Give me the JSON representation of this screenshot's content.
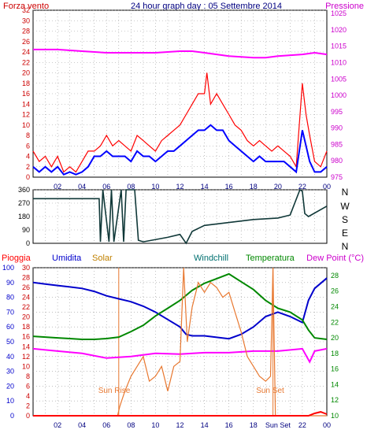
{
  "header": {
    "left_label": "Forza vento",
    "title": "24 hour graph day : 05 Settembre 2014",
    "right_label": "Pressione"
  },
  "direction_labels": [
    "N",
    "W",
    "S",
    "E",
    "N"
  ],
  "bottom_legend": {
    "pioggia": "Pioggia",
    "umidita": "Umidita",
    "solar": "Solar",
    "windchill": "Windchill",
    "temperatura": "Temperatura",
    "dewpoint": "Dew Point (°C)"
  },
  "sun_labels": {
    "rise": "Sun Rise",
    "set": "Sun Set"
  },
  "colors": {
    "wind_gust": "#ff0000",
    "wind_avg": "#0000ff",
    "pressure": "#ff00ff",
    "direction": "#103838",
    "humidity": "#0000cc",
    "solar": "#e87830",
    "temperature": "#008800",
    "dewpoint": "#ff00ff",
    "rain": "#ff0000",
    "windchill": "#006666",
    "left_axis": "#cc0000",
    "right_axis": "#cc00cc"
  },
  "chart_data": [
    {
      "type": "line",
      "name": "wind-pressure",
      "x_ticks": [
        "02",
        "04",
        "06",
        "08",
        "10",
        "12",
        "14",
        "16",
        "18",
        "20",
        "22",
        "00"
      ],
      "x_range_hours": [
        0,
        24
      ],
      "left_axis": {
        "ticks": [
          0,
          2,
          4,
          6,
          8,
          10,
          12,
          14,
          16,
          18,
          20,
          22,
          24,
          26,
          28,
          30,
          32
        ],
        "ylim": [
          0,
          32
        ]
      },
      "right_axis": {
        "ticks": [
          975,
          980,
          985,
          990,
          995,
          1000,
          1005,
          1010,
          1015,
          1020,
          1025
        ],
        "ylim": [
          975,
          1026
        ]
      },
      "series": [
        {
          "name": "Forza vento",
          "axis": "left",
          "x": [
            0,
            0.5,
            1,
            1.5,
            2,
            2.5,
            3,
            3.5,
            4,
            4.5,
            5,
            5.5,
            6,
            6.5,
            7,
            7.5,
            8,
            8.5,
            9,
            9.5,
            10,
            10.5,
            11,
            11.5,
            12,
            12.5,
            13,
            13.5,
            14,
            14.2,
            14.5,
            15,
            15.5,
            16,
            16.5,
            17,
            17.5,
            18,
            18.5,
            19,
            19.5,
            20,
            20.5,
            21,
            21.5,
            22,
            22.3,
            22.6,
            23,
            23.5,
            24
          ],
          "y": [
            5,
            3,
            4,
            2,
            4,
            1,
            2,
            1,
            3,
            5,
            5,
            6,
            8,
            6,
            7,
            6,
            5,
            8,
            7,
            6,
            5,
            7,
            8,
            9,
            10,
            12,
            14,
            16,
            16,
            20,
            14,
            16,
            14,
            12,
            10,
            9,
            7,
            6,
            7,
            6,
            5,
            6,
            5,
            4,
            2,
            18,
            12,
            8,
            3,
            2,
            5
          ]
        },
        {
          "name": "Vento medio",
          "axis": "left",
          "x": [
            0,
            0.5,
            1,
            1.5,
            2,
            2.5,
            3,
            3.5,
            4,
            4.5,
            5,
            5.5,
            6,
            6.5,
            7,
            7.5,
            8,
            8.5,
            9,
            9.5,
            10,
            10.5,
            11,
            11.5,
            12,
            12.5,
            13,
            13.5,
            14,
            14.5,
            15,
            15.5,
            16,
            16.5,
            17,
            17.5,
            18,
            18.5,
            19,
            19.5,
            20,
            20.5,
            21,
            21.5,
            22,
            22.3,
            22.6,
            23,
            23.5,
            24
          ],
          "y": [
            2,
            1,
            2,
            1,
            2,
            0.5,
            1,
            0.5,
            1,
            2,
            4,
            4,
            5,
            4,
            4,
            4,
            3,
            5,
            4,
            4,
            3,
            4,
            5,
            5,
            6,
            7,
            8,
            9,
            9,
            10,
            9,
            9,
            7,
            6,
            5,
            4,
            3,
            4,
            3,
            3,
            3,
            3,
            2,
            1,
            9,
            6,
            3,
            1,
            1,
            2
          ]
        },
        {
          "name": "Pressione",
          "axis": "right",
          "x": [
            0,
            2,
            4,
            6,
            8,
            10,
            12,
            13,
            14,
            15,
            16,
            18,
            19,
            20,
            22,
            23,
            24
          ],
          "y": [
            1014,
            1014,
            1013.5,
            1013,
            1013,
            1013,
            1013.5,
            1013.5,
            1013,
            1012.5,
            1012,
            1011.5,
            1011.5,
            1012,
            1012.5,
            1013,
            1012.5
          ]
        }
      ]
    },
    {
      "type": "line",
      "name": "wind-direction",
      "x_range_hours": [
        0,
        24
      ],
      "y_ticks": [
        0,
        90,
        180,
        270,
        360
      ],
      "ylim": [
        0,
        360
      ],
      "series": [
        {
          "name": "Direzione",
          "x": [
            0,
            2,
            4,
            5.4,
            5.5,
            5.7,
            6.2,
            6.4,
            6.6,
            7.2,
            7.4,
            7.6,
            8.3,
            8.6,
            9,
            11,
            12,
            12.5,
            13,
            14,
            16,
            18,
            20,
            21,
            21.8,
            22,
            22.2,
            22.5,
            24
          ],
          "y": [
            300,
            300,
            300,
            300,
            10,
            360,
            10,
            360,
            10,
            360,
            10,
            360,
            360,
            20,
            10,
            40,
            60,
            0,
            80,
            120,
            140,
            160,
            170,
            190,
            360,
            350,
            200,
            180,
            250
          ]
        }
      ]
    },
    {
      "type": "line",
      "name": "temperature-humidity",
      "x_ticks": [
        "02",
        "04",
        "06",
        "08",
        "10",
        "12",
        "14",
        "16",
        "18",
        "Sun Set",
        "22",
        "00"
      ],
      "x_range_hours": [
        0,
        24
      ],
      "axes": {
        "Umidita": {
          "ticks": [
            0,
            10,
            20,
            30,
            40,
            50,
            60,
            70,
            80,
            90,
            100
          ],
          "ylim": [
            0,
            100
          ]
        },
        "Solar": {
          "ticks": [
            0,
            2,
            4,
            6,
            8,
            10,
            12,
            14,
            16,
            18,
            20,
            22,
            24,
            26,
            28,
            30
          ],
          "ylim": [
            0,
            30
          ]
        },
        "Temperatura": {
          "ticks": [
            10,
            12,
            14,
            16,
            18,
            20,
            22,
            24,
            26,
            28
          ],
          "ylim": [
            10,
            29
          ]
        }
      },
      "sunrise_hour": 7.0,
      "sunset_hour": 19.6,
      "series": [
        {
          "name": "Umidita",
          "axis": "Umidita",
          "x": [
            0,
            1,
            2,
            3,
            4,
            5,
            6,
            7,
            8,
            9,
            10,
            11,
            12,
            12.5,
            13,
            14,
            15,
            16,
            17,
            18,
            19,
            20,
            21,
            22,
            22.5,
            23,
            24
          ],
          "y": [
            90,
            89,
            88,
            87,
            86,
            84,
            81,
            79,
            77,
            74,
            70,
            65,
            60,
            55,
            54,
            54,
            53,
            52,
            55,
            60,
            67,
            70,
            67,
            63,
            78,
            86,
            93
          ]
        },
        {
          "name": "Temperatura",
          "axis": "Temperatura",
          "x": [
            0,
            1,
            2,
            3,
            4,
            5,
            6,
            7,
            8,
            9,
            10,
            11,
            12,
            13,
            14,
            15,
            16,
            17,
            18,
            19,
            20,
            21,
            22,
            22.5,
            23,
            24
          ],
          "y": [
            20.2,
            20.1,
            20,
            19.9,
            19.8,
            19.8,
            19.9,
            20.1,
            20.8,
            21.6,
            22.8,
            23.8,
            24.8,
            26.1,
            27,
            27.6,
            28.2,
            27.2,
            26.2,
            24.8,
            23.8,
            23.3,
            22.3,
            21,
            20,
            19.8
          ]
        },
        {
          "name": "Dew Point",
          "axis": "Temperatura",
          "x": [
            0,
            2,
            4,
            6,
            8,
            10,
            12,
            14,
            16,
            18,
            20,
            22,
            22.6,
            23,
            24
          ],
          "y": [
            18.6,
            18.3,
            18,
            17.4,
            17.6,
            18,
            17.9,
            18.1,
            18.1,
            18.3,
            18.3,
            18.6,
            16.9,
            18.3,
            18.6
          ]
        },
        {
          "name": "Solar",
          "axis": "Solar",
          "x": [
            0,
            6.9,
            7.1,
            7.5,
            8,
            8.5,
            9,
            9.5,
            10,
            10.5,
            11,
            11.5,
            12,
            12.3,
            12.6,
            13,
            13.5,
            14,
            14.5,
            15,
            15.5,
            16,
            16.5,
            17,
            17.5,
            18,
            18.5,
            19,
            19.4,
            19.6,
            19.8,
            24
          ],
          "y": [
            0,
            0,
            2,
            5,
            8,
            10,
            12,
            7,
            8,
            10,
            5,
            10,
            11,
            30,
            15,
            22,
            27,
            25,
            27,
            26,
            24,
            25,
            21,
            17,
            12,
            10,
            8,
            7,
            8,
            30,
            0,
            0
          ]
        },
        {
          "name": "Pioggia",
          "axis": "Temperatura",
          "x": [
            0,
            22.5,
            23,
            23.5,
            24
          ],
          "y": [
            10,
            10,
            10.3,
            10.5,
            10.2
          ]
        }
      ]
    }
  ]
}
